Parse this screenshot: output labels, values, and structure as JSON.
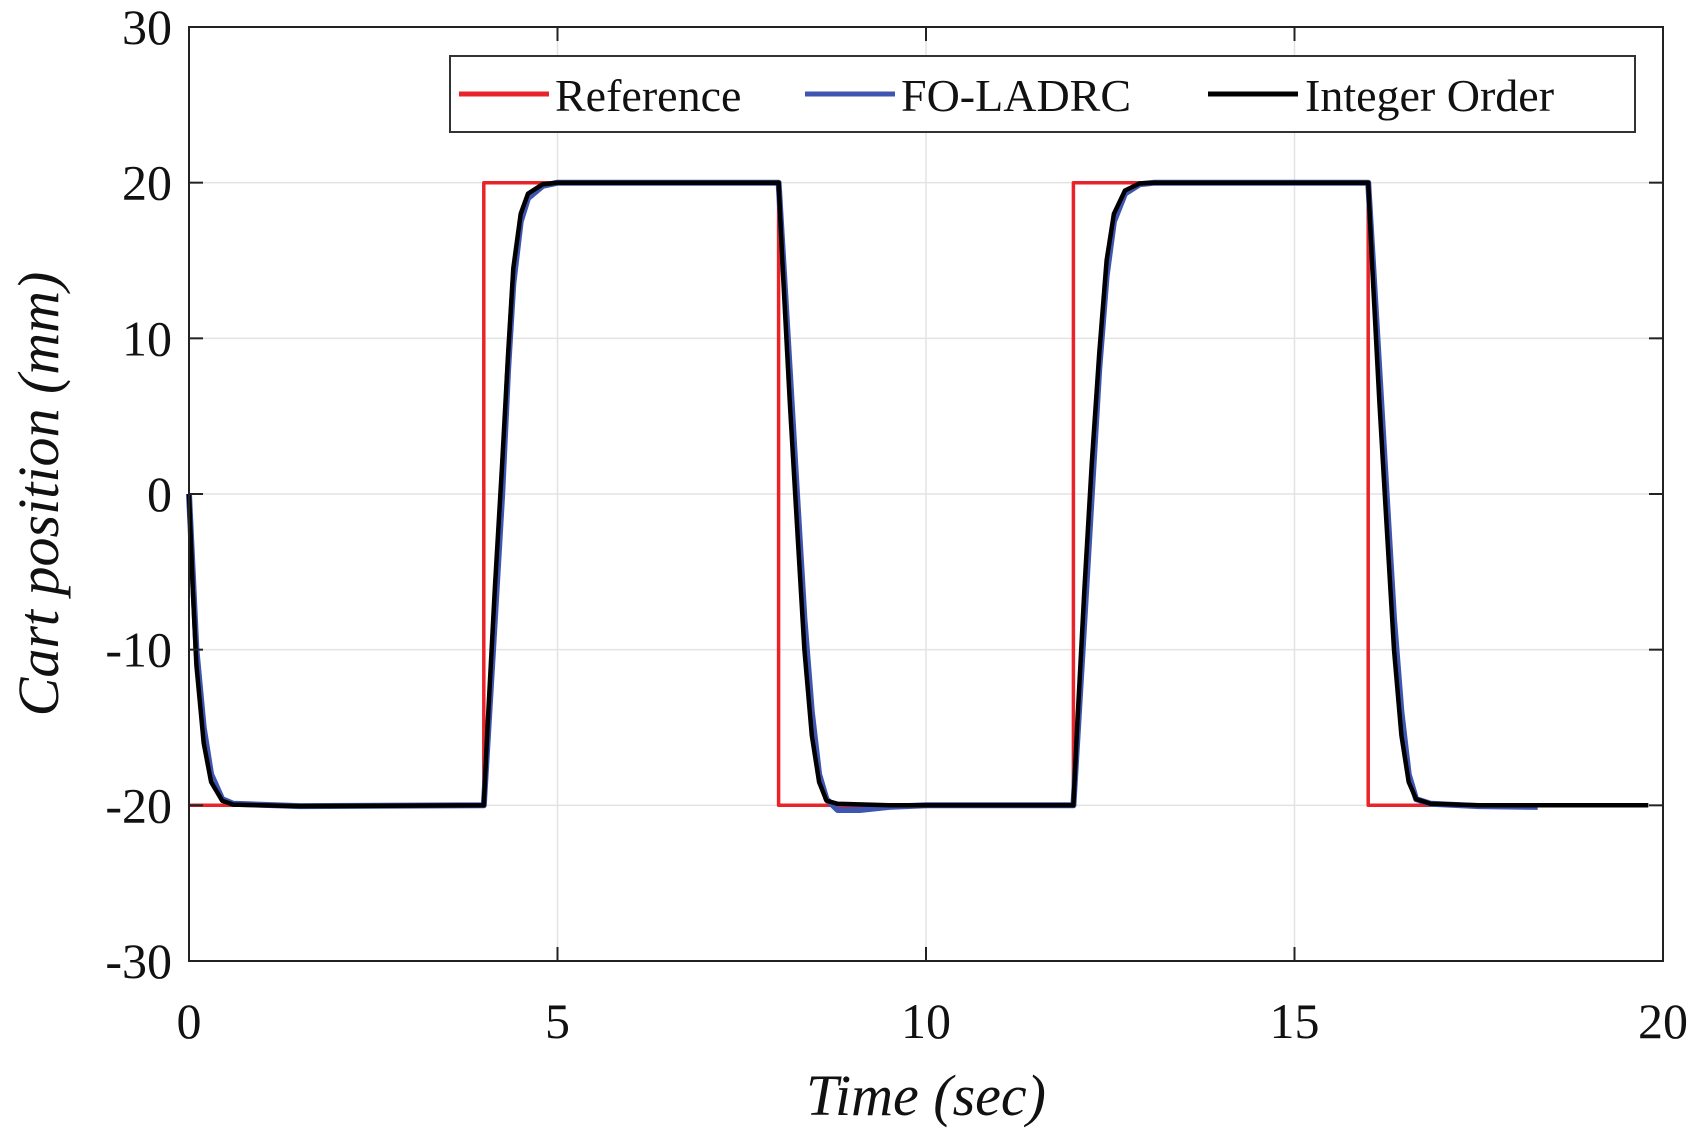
{
  "chart_data": {
    "type": "line",
    "title": "",
    "xlabel": "Time (sec)",
    "ylabel": "Cart position (mm)",
    "xlim": [
      0,
      20
    ],
    "ylim": [
      -30,
      30
    ],
    "xticks": [
      0,
      5,
      10,
      15,
      20
    ],
    "yticks": [
      -30,
      -20,
      -10,
      0,
      10,
      20,
      30
    ],
    "grid": true,
    "legend_position": "top-right",
    "series": [
      {
        "name": "Reference",
        "color": "#e8242a",
        "points": [
          [
            0,
            -20
          ],
          [
            4,
            -20
          ],
          [
            4,
            20
          ],
          [
            8,
            20
          ],
          [
            8,
            -20
          ],
          [
            12,
            -20
          ],
          [
            12,
            20
          ],
          [
            16,
            20
          ],
          [
            16,
            -20
          ],
          [
            19.8,
            -20
          ]
        ]
      },
      {
        "name": "FO-LADRC",
        "color": "#3f56b0",
        "points": [
          [
            0,
            0
          ],
          [
            0.05,
            -5
          ],
          [
            0.1,
            -10
          ],
          [
            0.2,
            -15
          ],
          [
            0.3,
            -18
          ],
          [
            0.45,
            -19.6
          ],
          [
            0.6,
            -19.9
          ],
          [
            1.5,
            -20.05
          ],
          [
            4,
            -20
          ],
          [
            4.05,
            -16
          ],
          [
            4.15,
            -8
          ],
          [
            4.25,
            0
          ],
          [
            4.33,
            8
          ],
          [
            4.4,
            13.5
          ],
          [
            4.5,
            17.5
          ],
          [
            4.6,
            19
          ],
          [
            4.8,
            19.8
          ],
          [
            5,
            20
          ],
          [
            8,
            20
          ],
          [
            8.05,
            16
          ],
          [
            8.15,
            8
          ],
          [
            8.25,
            0
          ],
          [
            8.35,
            -8
          ],
          [
            8.45,
            -14
          ],
          [
            8.55,
            -18
          ],
          [
            8.65,
            -19.6
          ],
          [
            8.8,
            -20.3
          ],
          [
            9.1,
            -20.3
          ],
          [
            9.5,
            -20.1
          ],
          [
            10,
            -20
          ],
          [
            12,
            -20
          ],
          [
            12.05,
            -16
          ],
          [
            12.15,
            -8
          ],
          [
            12.25,
            0
          ],
          [
            12.35,
            8
          ],
          [
            12.45,
            14
          ],
          [
            12.55,
            17.5
          ],
          [
            12.7,
            19.3
          ],
          [
            12.9,
            19.9
          ],
          [
            13.1,
            20
          ],
          [
            16,
            20
          ],
          [
            16.05,
            16
          ],
          [
            16.15,
            8
          ],
          [
            16.25,
            0
          ],
          [
            16.35,
            -8
          ],
          [
            16.45,
            -14
          ],
          [
            16.55,
            -18
          ],
          [
            16.65,
            -19.6
          ],
          [
            16.85,
            -19.9
          ],
          [
            17.5,
            -20.05
          ],
          [
            18.3,
            -20.1
          ]
        ]
      },
      {
        "name": "Integer Order",
        "color": "#000000",
        "points": [
          [
            0,
            0
          ],
          [
            0.05,
            -6
          ],
          [
            0.1,
            -11
          ],
          [
            0.2,
            -16
          ],
          [
            0.3,
            -18.5
          ],
          [
            0.45,
            -19.7
          ],
          [
            0.6,
            -19.95
          ],
          [
            1.5,
            -20.05
          ],
          [
            4,
            -20
          ],
          [
            4.05,
            -15
          ],
          [
            4.15,
            -6
          ],
          [
            4.25,
            2
          ],
          [
            4.33,
            9
          ],
          [
            4.4,
            14.5
          ],
          [
            4.5,
            18
          ],
          [
            4.6,
            19.3
          ],
          [
            4.8,
            19.9
          ],
          [
            5,
            20
          ],
          [
            8,
            20
          ],
          [
            8.05,
            15
          ],
          [
            8.15,
            6
          ],
          [
            8.25,
            -2
          ],
          [
            8.35,
            -10
          ],
          [
            8.45,
            -15.5
          ],
          [
            8.55,
            -18.5
          ],
          [
            8.65,
            -19.7
          ],
          [
            8.8,
            -19.9
          ],
          [
            9.5,
            -20
          ],
          [
            12,
            -20
          ],
          [
            12.05,
            -15
          ],
          [
            12.15,
            -6
          ],
          [
            12.25,
            2
          ],
          [
            12.35,
            9
          ],
          [
            12.45,
            15
          ],
          [
            12.55,
            18
          ],
          [
            12.7,
            19.5
          ],
          [
            12.9,
            19.95
          ],
          [
            13.1,
            20
          ],
          [
            16,
            20
          ],
          [
            16.05,
            15
          ],
          [
            16.15,
            6
          ],
          [
            16.25,
            -2
          ],
          [
            16.35,
            -10
          ],
          [
            16.45,
            -15.5
          ],
          [
            16.55,
            -18.5
          ],
          [
            16.65,
            -19.6
          ],
          [
            16.85,
            -19.9
          ],
          [
            17.5,
            -20
          ],
          [
            19.8,
            -20
          ]
        ]
      }
    ]
  }
}
